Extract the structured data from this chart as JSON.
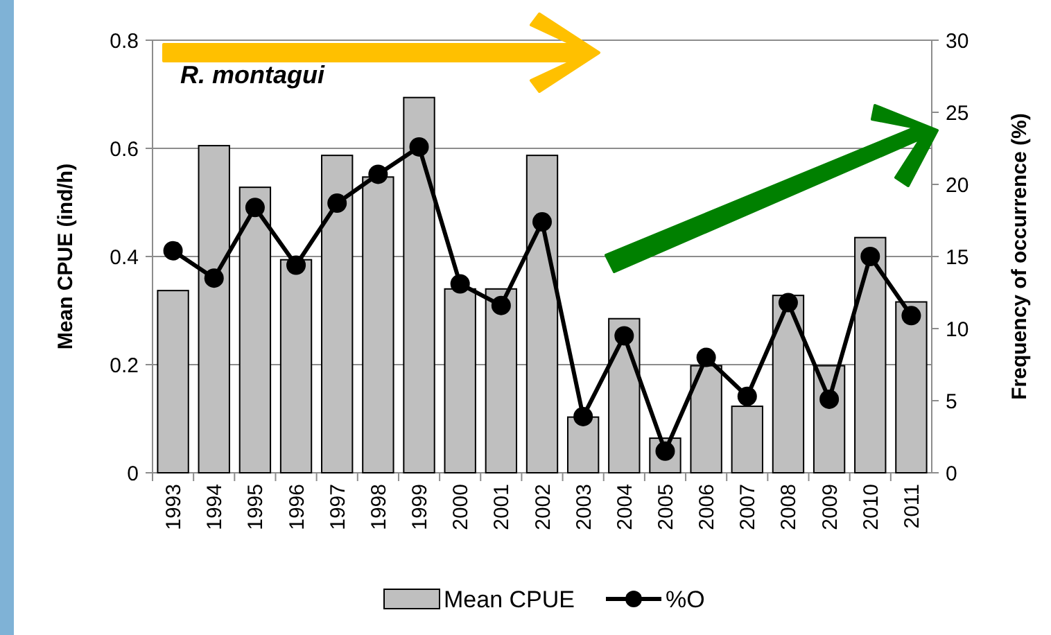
{
  "chart_data": {
    "type": "bar",
    "title": "R. montagui",
    "categories": [
      "1993",
      "1994",
      "1995",
      "1996",
      "1997",
      "1998",
      "1999",
      "2000",
      "2001",
      "2002",
      "2003",
      "2004",
      "2005",
      "2006",
      "2007",
      "2008",
      "2009",
      "2010",
      "2011"
    ],
    "series": [
      {
        "name": "Mean CPUE",
        "color": "#bfbfbf",
        "values": [
          0.337,
          0.605,
          0.528,
          0.394,
          0.587,
          0.547,
          0.694,
          0.34,
          0.34,
          0.587,
          0.103,
          0.285,
          0.064,
          0.198,
          0.123,
          0.328,
          0.198,
          0.435,
          0.316
        ]
      },
      {
        "name": "%O",
        "type": "line",
        "axis": "y2",
        "color": "#000000",
        "values": [
          15.4,
          13.5,
          18.4,
          14.4,
          18.7,
          20.7,
          22.6,
          13.1,
          11.6,
          17.4,
          3.9,
          9.5,
          1.5,
          8.0,
          5.3,
          11.8,
          5.1,
          15.0,
          10.9
        ]
      }
    ],
    "ylabel": "Mean CPUE (ind/h)",
    "y2label": "Frequency of occurrence (%)",
    "ylim": [
      0,
      0.8
    ],
    "yticks": [
      0,
      0.2,
      0.4,
      0.6,
      0.8
    ],
    "y2lim": [
      0,
      30
    ],
    "y2ticks": [
      0,
      5,
      10,
      15,
      20,
      25,
      30
    ],
    "grid": "y",
    "legend": "bottom",
    "marker": "circle"
  }
}
